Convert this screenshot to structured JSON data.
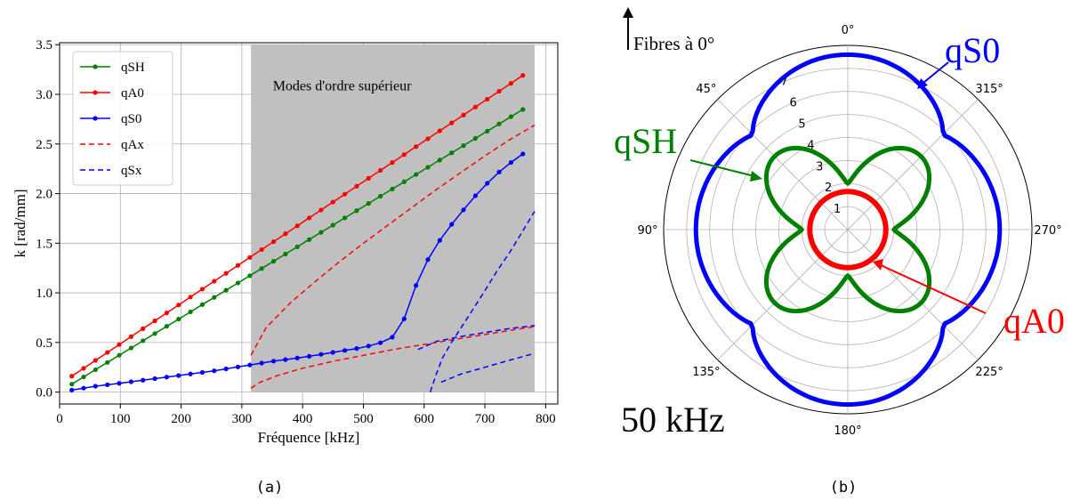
{
  "captions": {
    "a": "(a)",
    "b": "(b)"
  },
  "colors": {
    "qSH": "#008000",
    "qA0": "#ff0000",
    "qS0": "#0000ff",
    "shade": "#c0c0c0",
    "grid": "#b0b0b0"
  },
  "chart_data": [
    {
      "type": "line",
      "xlabel": "Fréquence [kHz]",
      "ylabel": "k [rad/mm]",
      "xlim": [
        0,
        820
      ],
      "ylim": [
        -0.12,
        3.52
      ],
      "xticks": [
        0,
        100,
        200,
        300,
        400,
        500,
        600,
        700,
        800
      ],
      "yticks": [
        0.0,
        0.5,
        1.0,
        1.5,
        2.0,
        2.5,
        3.0,
        3.5
      ],
      "grid": true,
      "legend_position": "upper-left",
      "annotation": {
        "text": "Modes d'ordre supérieur",
        "x": 465,
        "y": 3.04
      },
      "shaded_region": {
        "x": [
          315,
          782
        ],
        "y": [
          0,
          3.5
        ]
      },
      "series": [
        {
          "name": "qSH",
          "style": "solid-markers",
          "color": "#008000",
          "x": [
            20,
            782
          ],
          "y": [
            0.08,
            2.92
          ]
        },
        {
          "name": "qA0",
          "style": "solid-markers",
          "color": "#ff0000",
          "x": [
            20,
            782
          ],
          "y": [
            0.16,
            3.27
          ]
        },
        {
          "name": "qS0",
          "style": "solid-markers",
          "color": "#0000ff",
          "x": [
            20,
            60,
            100,
            150,
            200,
            250,
            300,
            350,
            400,
            450,
            500,
            530,
            550,
            565,
            575,
            585,
            600,
            620,
            640,
            660,
            680,
            700,
            720,
            740,
            760,
            782
          ],
          "y": [
            0.02,
            0.06,
            0.09,
            0.13,
            0.17,
            0.21,
            0.26,
            0.31,
            0.35,
            0.4,
            0.45,
            0.5,
            0.56,
            0.7,
            0.88,
            1.05,
            1.27,
            1.48,
            1.65,
            1.8,
            1.95,
            2.08,
            2.2,
            2.3,
            2.39,
            2.47
          ]
        },
        {
          "name": "qAx",
          "style": "dashed",
          "color": "#ff0000",
          "x": [
            315,
            340,
            380,
            420,
            460,
            500,
            540,
            580,
            620,
            660,
            700,
            740,
            782
          ],
          "y": [
            0.37,
            0.65,
            0.9,
            1.11,
            1.31,
            1.5,
            1.68,
            1.86,
            2.04,
            2.21,
            2.38,
            2.54,
            2.69
          ]
        },
        {
          "name": "",
          "style": "dashed",
          "color": "#ff0000",
          "x": [
            315,
            330,
            360,
            400,
            450,
            500,
            550,
            600,
            650,
            700,
            750,
            782
          ],
          "y": [
            0.04,
            0.1,
            0.17,
            0.24,
            0.31,
            0.37,
            0.43,
            0.48,
            0.53,
            0.58,
            0.63,
            0.66
          ]
        },
        {
          "name": "qSx",
          "style": "dashed",
          "color": "#0000ff",
          "x": [
            610,
            615,
            620,
            630,
            645,
            660,
            680,
            700,
            720,
            740,
            760,
            782
          ],
          "y": [
            0.0,
            0.09,
            0.18,
            0.34,
            0.5,
            0.64,
            0.83,
            1.02,
            1.22,
            1.4,
            1.6,
            1.82
          ]
        },
        {
          "name": "",
          "style": "dashed",
          "color": "#0000ff",
          "x": [
            590,
            620,
            660,
            700,
            740,
            782
          ],
          "y": [
            0.43,
            0.51,
            0.56,
            0.6,
            0.64,
            0.67
          ]
        },
        {
          "name": "",
          "style": "dashed",
          "color": "#0000ff",
          "x": [
            628,
            660,
            700,
            740,
            782
          ],
          "y": [
            0.1,
            0.18,
            0.25,
            0.32,
            0.39
          ]
        }
      ]
    },
    {
      "type": "polar",
      "theta_direction": "counter-clockwise",
      "theta_zero": "top",
      "rmax": 8,
      "radial_ticks": [
        "1",
        "2",
        "3",
        "4",
        "5",
        "6",
        "7"
      ],
      "angle_labels": [
        "0°",
        "45°",
        "90°",
        "135°",
        "180°",
        "225°",
        "270°",
        "315°"
      ],
      "axis_arrow_label": "Fibres à 0°",
      "frequency_label": "50 kHz",
      "series": [
        {
          "name": "qS0",
          "color": "#0000ff",
          "r_at_0": 7.6,
          "r_at_45": 5.8,
          "r_at_90": 6.6
        },
        {
          "name": "qSH",
          "color": "#008000",
          "r_at_0": 2.0,
          "r_at_45": 4.5,
          "r_at_90": 2.0
        },
        {
          "name": "qA0",
          "color": "#ff0000",
          "r": 1.65
        }
      ],
      "labels": [
        {
          "text": "qS0",
          "color": "#0000ff"
        },
        {
          "text": "qSH",
          "color": "#008000"
        },
        {
          "text": "qA0",
          "color": "#ff0000"
        }
      ]
    }
  ]
}
